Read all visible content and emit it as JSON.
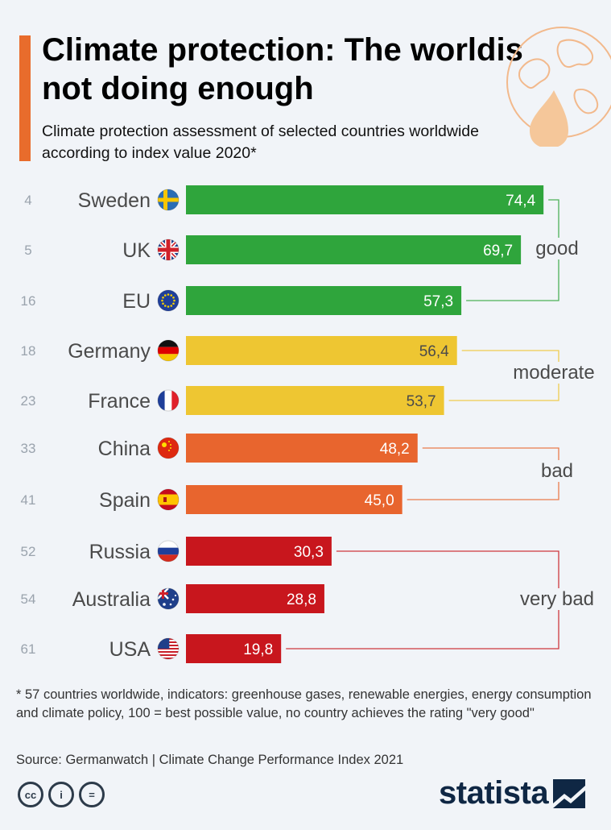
{
  "header": {
    "title": "Climate protection: The worldis not doing enough",
    "subtitle": "Climate protection assessment of selected countries worldwide according to index value 2020*"
  },
  "chart_data": {
    "type": "bar",
    "orientation": "horizontal",
    "categories": [
      "Sweden",
      "UK",
      "EU",
      "Germany",
      "France",
      "China",
      "Spain",
      "Russia",
      "Australia",
      "USA"
    ],
    "ranks": [
      "4",
      "5",
      "16",
      "18",
      "23",
      "33",
      "41",
      "52",
      "54",
      "61"
    ],
    "values": [
      74.4,
      69.7,
      57.3,
      56.4,
      53.7,
      48.2,
      45.0,
      30.3,
      28.8,
      19.8
    ],
    "value_labels": [
      "74,4",
      "69,7",
      "57,3",
      "56,4",
      "53,7",
      "48,2",
      "45,0",
      "30,3",
      "28,8",
      "19,8"
    ],
    "ratings": [
      "good",
      "good",
      "good",
      "moderate",
      "moderate",
      "bad",
      "bad",
      "very bad",
      "very bad",
      "very bad"
    ],
    "groups": [
      {
        "label": "good",
        "color": "#2fa53c",
        "start": 0,
        "end": 2
      },
      {
        "label": "moderate",
        "color": "#eec632",
        "start": 3,
        "end": 4
      },
      {
        "label": "bad",
        "color": "#e8652e",
        "start": 5,
        "end": 6
      },
      {
        "label": "very bad",
        "color": "#c8161d",
        "start": 7,
        "end": 9
      }
    ],
    "value_label_colors": [
      "#ffffff",
      "#ffffff",
      "#ffffff",
      "#4a4a4a",
      "#4a4a4a",
      "#ffffff",
      "#ffffff",
      "#ffffff",
      "#ffffff",
      "#ffffff"
    ],
    "flag_icons": [
      "sweden-flag-icon",
      "uk-flag-icon",
      "eu-flag-icon",
      "germany-flag-icon",
      "france-flag-icon",
      "china-flag-icon",
      "spain-flag-icon",
      "russia-flag-icon",
      "australia-flag-icon",
      "usa-flag-icon"
    ],
    "xlim": [
      0,
      100
    ],
    "xlabel": "",
    "ylabel": "",
    "grid": false,
    "legend": "none"
  },
  "footnote": "* 57 countries worldwide, indicators: greenhouse gases, renewable energies, energy consumption and climate policy, 100 = best possible value, no country achieves the rating \"very good\"",
  "source": "Source: Germanwatch | Climate Change Performance Index 2021",
  "license": {
    "cc": "cc",
    "by": "i",
    "nd": "="
  },
  "brand": {
    "name": "statista"
  }
}
